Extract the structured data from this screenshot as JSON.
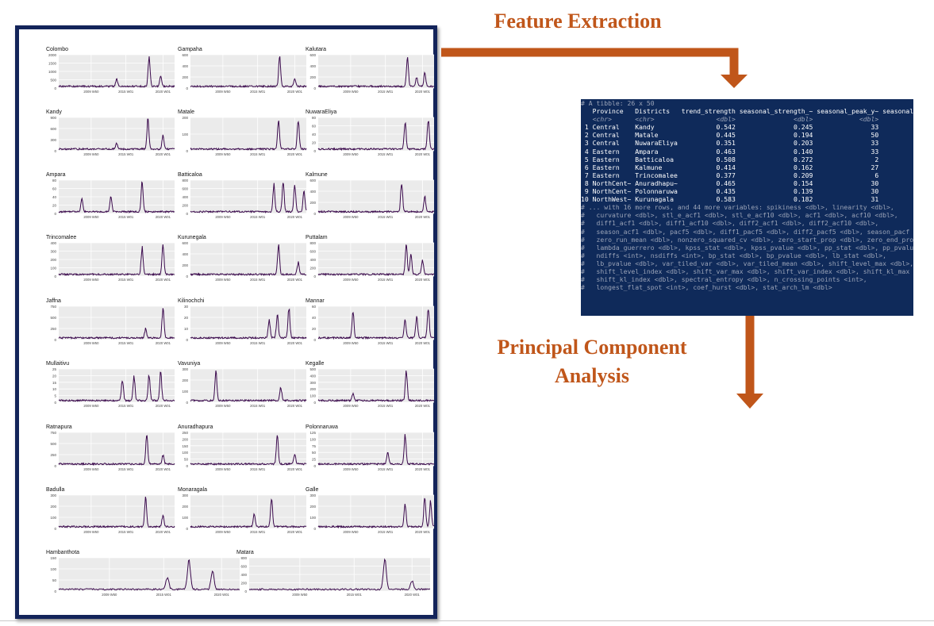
{
  "headings": {
    "feature_extraction": "Feature Extraction",
    "pca_line1": "Principal Component",
    "pca_line2": "Analysis"
  },
  "colors": {
    "arrow": "#c0561a",
    "frame": "#13245a",
    "console_bg": "#0f2a5a",
    "series": "#3b0a4d",
    "grid": "#ebebeb"
  },
  "chart_data": {
    "type": "line",
    "panels": [
      {
        "title": "Colombo",
        "yticks": [
          "2000",
          "1500",
          "1000",
          "500",
          "0"
        ],
        "xticks": [
          "2009 W50",
          "2015 W01",
          "2020 W01"
        ],
        "peaks": [
          [
            0.78,
            1.0
          ],
          [
            0.88,
            0.35
          ],
          [
            0.5,
            0.25
          ]
        ]
      },
      {
        "title": "Gampaha",
        "yticks": [
          "600",
          "400",
          "200",
          "0"
        ],
        "xticks": [
          "2009 W50",
          "2015 W01",
          "2020 W01"
        ],
        "peaks": [
          [
            0.77,
            1.0
          ],
          [
            0.9,
            0.25
          ]
        ]
      },
      {
        "title": "Kalutara",
        "yticks": [
          "600",
          "400",
          "200",
          "0"
        ],
        "xticks": [
          "2009 W50",
          "2015 W01",
          "2020 W01"
        ],
        "peaks": [
          [
            0.77,
            1.0
          ],
          [
            0.92,
            0.45
          ],
          [
            0.85,
            0.3
          ]
        ]
      },
      {
        "title": "Kandy",
        "yticks": [
          "900",
          "600",
          "300",
          "0"
        ],
        "xticks": [
          "2009 W50",
          "2015 W01",
          "2020 W01"
        ],
        "peaks": [
          [
            0.77,
            1.0
          ],
          [
            0.9,
            0.45
          ],
          [
            0.5,
            0.2
          ]
        ]
      },
      {
        "title": "Matale",
        "yticks": [
          "200",
          "100",
          "0"
        ],
        "xticks": [
          "2009 W50",
          "2015 W01",
          "2020 W01"
        ],
        "peaks": [
          [
            0.76,
            0.95
          ],
          [
            0.93,
            1.0
          ]
        ]
      },
      {
        "title": "NuwaraEliya",
        "yticks": [
          "80",
          "60",
          "40",
          "20",
          "0"
        ],
        "xticks": [
          "2009 W50",
          "2015 W01",
          "2020 W01"
        ],
        "peaks": [
          [
            0.75,
            0.95
          ],
          [
            0.95,
            1.0
          ]
        ]
      },
      {
        "title": "Ampara",
        "yticks": [
          "80",
          "60",
          "40",
          "20",
          "0"
        ],
        "xticks": [
          "2009 W50",
          "2015 W01",
          "2020 W01"
        ],
        "peaks": [
          [
            0.72,
            1.0
          ],
          [
            0.45,
            0.5
          ],
          [
            0.2,
            0.45
          ]
        ]
      },
      {
        "title": "Batticaloa",
        "yticks": [
          "800",
          "600",
          "400",
          "200",
          "0"
        ],
        "xticks": [
          "2009 W50",
          "2015 W01",
          "2020 W01"
        ],
        "peaks": [
          [
            0.72,
            0.9
          ],
          [
            0.8,
            1.0
          ],
          [
            0.9,
            0.9
          ],
          [
            0.98,
            0.7
          ]
        ]
      },
      {
        "title": "Kalmune",
        "yticks": [
          "600",
          "400",
          "200",
          "0"
        ],
        "xticks": [
          "2009 W50",
          "2015 W01",
          "2020 W01"
        ],
        "peaks": [
          [
            0.72,
            1.0
          ],
          [
            0.92,
            0.5
          ]
        ]
      },
      {
        "title": "Trincomalee",
        "yticks": [
          "400",
          "300",
          "200",
          "100",
          "0"
        ],
        "xticks": [
          "2009 W50",
          "2015 W01",
          "2020 W01"
        ],
        "peaks": [
          [
            0.72,
            0.9
          ],
          [
            0.9,
            1.0
          ]
        ]
      },
      {
        "title": "Kurunegala",
        "yticks": [
          "600",
          "400",
          "200",
          "0"
        ],
        "xticks": [
          "2009 W50",
          "2015 W01",
          "2020 W01"
        ],
        "peaks": [
          [
            0.76,
            1.0
          ],
          [
            0.93,
            0.4
          ]
        ]
      },
      {
        "title": "Puttalam",
        "yticks": [
          "800",
          "600",
          "400",
          "200",
          "0"
        ],
        "xticks": [
          "2009 W50",
          "2015 W01",
          "2020 W01"
        ],
        "peaks": [
          [
            0.76,
            1.0
          ],
          [
            0.8,
            0.7
          ],
          [
            0.9,
            0.5
          ]
        ]
      },
      {
        "title": "Jaffna",
        "yticks": [
          "750",
          "500",
          "250",
          "0"
        ],
        "xticks": [
          "2009 W50",
          "2015 W01",
          "2020 W01"
        ],
        "peaks": [
          [
            0.9,
            1.0
          ],
          [
            0.75,
            0.3
          ]
        ]
      },
      {
        "title": "Kilinochchi",
        "yticks": [
          "30",
          "20",
          "10",
          "0"
        ],
        "xticks": [
          "2009 W50",
          "2015 W01",
          "2020 W01"
        ],
        "peaks": [
          [
            0.75,
            0.8
          ],
          [
            0.85,
            1.0
          ],
          [
            0.68,
            0.6
          ]
        ]
      },
      {
        "title": "Mannar",
        "yticks": [
          "60",
          "40",
          "20",
          "0"
        ],
        "xticks": [
          "2009 W50",
          "2015 W01",
          "2020 W01"
        ],
        "peaks": [
          [
            0.3,
            0.9
          ],
          [
            0.75,
            0.6
          ],
          [
            0.85,
            0.7
          ],
          [
            0.95,
            1.0
          ]
        ]
      },
      {
        "title": "Mullaitivu",
        "yticks": [
          "25",
          "20",
          "15",
          "10",
          "5",
          "0"
        ],
        "xticks": [
          "2009 W50",
          "2015 W01",
          "2020 W01"
        ],
        "peaks": [
          [
            0.55,
            0.7
          ],
          [
            0.65,
            0.8
          ],
          [
            0.78,
            0.9
          ],
          [
            0.88,
            1.0
          ]
        ]
      },
      {
        "title": "Vavuniya",
        "yticks": [
          "300",
          "200",
          "100",
          "0"
        ],
        "xticks": [
          "2009 W50",
          "2015 W01",
          "2020 W01"
        ],
        "peaks": [
          [
            0.22,
            1.0
          ],
          [
            0.78,
            0.45
          ]
        ]
      },
      {
        "title": "Kegalle",
        "yticks": [
          "500",
          "400",
          "300",
          "200",
          "100",
          "0"
        ],
        "xticks": [
          "2009 W50",
          "2015 W01",
          "2020 W01"
        ],
        "peaks": [
          [
            0.76,
            1.0
          ],
          [
            0.3,
            0.25
          ]
        ]
      },
      {
        "title": "Ratnapura",
        "yticks": [
          "750",
          "500",
          "250",
          "0"
        ],
        "xticks": [
          "2009 W50",
          "2015 W01",
          "2020 W01"
        ],
        "peaks": [
          [
            0.76,
            1.0
          ],
          [
            0.9,
            0.3
          ]
        ]
      },
      {
        "title": "Anuradhapura",
        "yticks": [
          "250",
          "200",
          "150",
          "100",
          "50",
          "0"
        ],
        "xticks": [
          "2009 W50",
          "2015 W01",
          "2020 W01"
        ],
        "peaks": [
          [
            0.75,
            1.0
          ],
          [
            0.9,
            0.35
          ]
        ]
      },
      {
        "title": "Polonnaruwa",
        "yticks": [
          "125",
          "100",
          "75",
          "50",
          "25",
          "0"
        ],
        "xticks": [
          "2009 W50",
          "2015 W01",
          "2020 W01"
        ],
        "peaks": [
          [
            0.75,
            1.0
          ],
          [
            0.6,
            0.4
          ]
        ]
      },
      {
        "title": "Badulla",
        "yticks": [
          "300",
          "200",
          "100",
          "0"
        ],
        "xticks": [
          "2009 W50",
          "2015 W01",
          "2020 W01"
        ],
        "peaks": [
          [
            0.75,
            1.0
          ],
          [
            0.9,
            0.4
          ]
        ]
      },
      {
        "title": "Monaragala",
        "yticks": [
          "300",
          "200",
          "100",
          "0"
        ],
        "xticks": [
          "2009 W50",
          "2015 W01",
          "2020 W01"
        ],
        "peaks": [
          [
            0.7,
            1.0
          ],
          [
            0.55,
            0.45
          ]
        ]
      },
      {
        "title": "Galle",
        "yticks": [
          "300",
          "200",
          "100",
          "0"
        ],
        "xticks": [
          "2009 W50",
          "2015 W01",
          "2020 W01"
        ],
        "peaks": [
          [
            0.75,
            0.8
          ],
          [
            0.92,
            1.0
          ],
          [
            0.97,
            0.85
          ]
        ]
      },
      {
        "title": "Hambanthota",
        "yticks": [
          "150",
          "100",
          "50",
          "0"
        ],
        "xticks": [
          "2009 W50",
          "2015 W01",
          "2020 W01"
        ],
        "peaks": [
          [
            0.72,
            1.0
          ],
          [
            0.85,
            0.6
          ],
          [
            0.6,
            0.4
          ]
        ]
      },
      {
        "title": "Matara",
        "yticks": [
          "800",
          "600",
          "400",
          "200",
          "0"
        ],
        "xticks": [
          "2009 W50",
          "2015 W01",
          "2020 W01"
        ],
        "peaks": [
          [
            0.75,
            1.0
          ],
          [
            0.9,
            0.3
          ]
        ]
      }
    ]
  },
  "tibble": {
    "header": "# A tibble: 26 x 50",
    "colnames": "   Province   Districts   trend_strength seasonal_strength_~ seasonal_peak_y~ seasonal_trough_~",
    "types": "   <chr>      <chr>                <dbl>               <dbl>            <dbl>             <dbl>",
    "rows": [
      " 1 Central    Kandy                0.542               0.245               33                18",
      " 2 Central    Matale               0.445               0.194               50                18",
      " 3 Central    NuwaraEliya          0.351               0.203               33                15",
      " 4 Eastern    Ampara               0.463               0.140               33                19",
      " 5 Eastern    Batticaloa           0.508               0.272                2                41",
      " 6 Eastern    Kalmune              0.414               0.162               27                42",
      " 7 Eastern    Trincomalee          0.377               0.209                6                38",
      " 8 NorthCent~ Anuradhapu~          0.465               0.154               30                18",
      " 9 NorthCent~ Polonnaruwa          0.435               0.139               30                37",
      "10 NorthWest~ Kurunagala           0.583               0.182               31                18"
    ],
    "footer": [
      "# ... with 16 more rows, and 44 more variables: spikiness <dbl>, linearity <dbl>,",
      "#   curvature <dbl>, stl_e_acf1 <dbl>, stl_e_acf10 <dbl>, acf1 <dbl>, acf10 <dbl>,",
      "#   diff1_acf1 <dbl>, diff1_acf10 <dbl>, diff2_acf1 <dbl>, diff2_acf10 <dbl>,",
      "#   season_acf1 <dbl>, pacf5 <dbl>, diff1_pacf5 <dbl>, diff2_pacf5 <dbl>, season_pacf <dbl>,",
      "#   zero_run_mean <dbl>, nonzero_squared_cv <dbl>, zero_start_prop <dbl>, zero_end_prop <dbl>,",
      "#   lambda_guerrero <dbl>, kpss_stat <dbl>, kpss_pvalue <dbl>, pp_stat <dbl>, pp_pvalue <dbl>,",
      "#   ndiffs <int>, nsdiffs <int>, bp_stat <dbl>, bp_pvalue <dbl>, lb_stat <dbl>,",
      "#   lb_pvalue <dbl>, var_tiled_var <dbl>, var_tiled_mean <dbl>, shift_level_max <dbl>,",
      "#   shift_level_index <dbl>, shift_var_max <dbl>, shift_var_index <dbl>, shift_kl_max <dbl>,",
      "#   shift_kl_index <dbl>, spectral_entropy <dbl>, n_crossing_points <int>,",
      "#   longest_flat_spot <int>, coef_hurst <dbl>, stat_arch_lm <dbl>"
    ]
  }
}
